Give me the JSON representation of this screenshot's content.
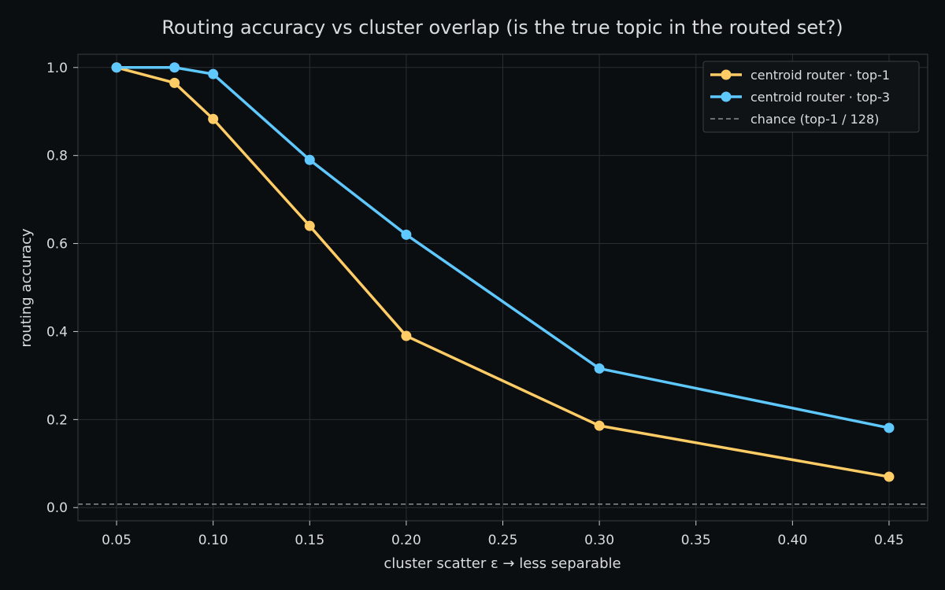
{
  "chart_data": {
    "type": "line",
    "title": "Routing accuracy vs cluster overlap (is the true topic in the routed set?)",
    "xlabel": "cluster scatter ε  →  less separable",
    "ylabel": "routing accuracy",
    "xlim": [
      0.03,
      0.47
    ],
    "ylim": [
      -0.03,
      1.03
    ],
    "xticks": [
      "0.05",
      "0.10",
      "0.15",
      "0.20",
      "0.25",
      "0.30",
      "0.35",
      "0.40",
      "0.45"
    ],
    "yticks": [
      "0.0",
      "0.2",
      "0.4",
      "0.6",
      "0.8",
      "1.0"
    ],
    "grid": true,
    "legend_position": "top-right",
    "x": [
      0.05,
      0.08,
      0.1,
      0.15,
      0.2,
      0.3,
      0.45
    ],
    "series": [
      {
        "name": "centroid router · top-1",
        "color": "#ffcc66",
        "style": "solid-markers",
        "values": [
          1.0,
          0.965,
          0.883,
          0.64,
          0.39,
          0.186,
          0.07
        ]
      },
      {
        "name": "centroid router · top-3",
        "color": "#5ec8ff",
        "style": "solid-markers",
        "values": [
          1.0,
          1.0,
          0.985,
          0.79,
          0.62,
          0.316,
          0.181
        ]
      },
      {
        "name": "chance (top-1 / 128)",
        "color": "#8a8f94",
        "style": "dashed",
        "values": [
          0.0078,
          0.0078,
          0.0078,
          0.0078,
          0.0078,
          0.0078,
          0.0078
        ]
      }
    ]
  }
}
